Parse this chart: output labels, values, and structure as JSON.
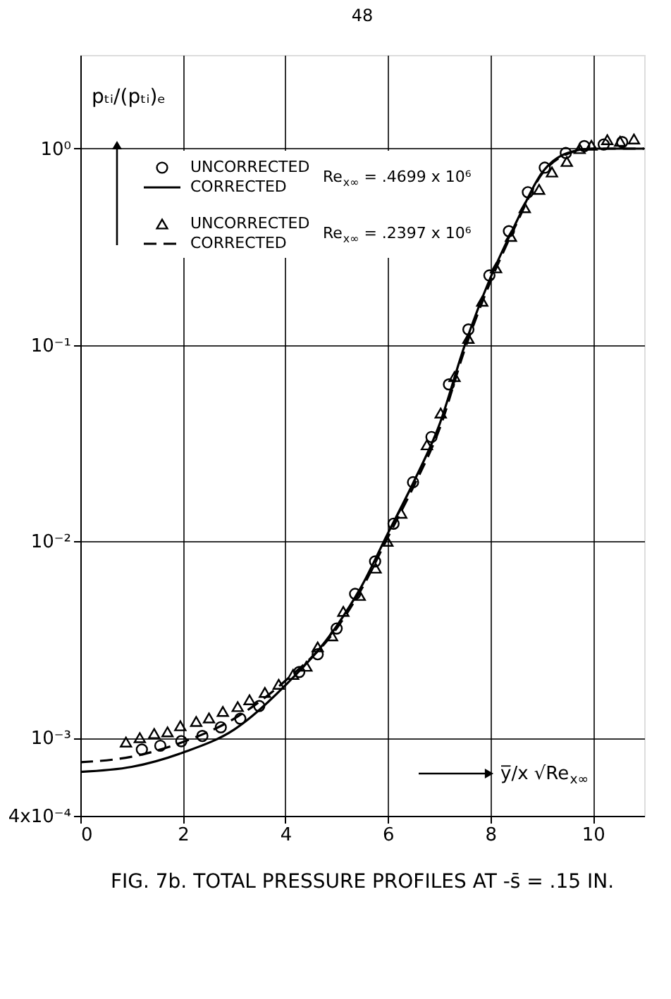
{
  "chart_data": {
    "type": "scatter",
    "title": "FIG. 7b. TOTAL PRESSURE PROFILES AT -s̄ = .15 IN.",
    "xlabel": "y̅/x √Re$_{x∞}$",
    "ylabel": "pₜᵢ/(pₜᵢ)ₑ",
    "annotations": [
      "Re$_{x∞}$ = .4699 x 10⁶",
      "Re$_{x∞}$ = .2397 x 10⁶",
      "48"
    ],
    "xlim": [
      0,
      11
    ],
    "xticks": [
      0,
      2,
      4,
      6,
      8,
      10
    ],
    "ylim": [
      0.0004,
      3
    ],
    "yticks": [
      {
        "value": 1,
        "label": "10⁰"
      },
      {
        "value": 0.1,
        "label": "10⁻¹"
      },
      {
        "value": 0.01,
        "label": "10⁻²"
      },
      {
        "value": 0.001,
        "label": "10⁻³"
      },
      {
        "value": 0.0004,
        "label": "4x10⁻⁴"
      }
    ],
    "log": "y",
    "grid": true,
    "legend": "top left",
    "series": [
      {
        "name": "UNCORRECTED",
        "marker": "circle",
        "color": "#000000",
        "x": [
          1.2,
          1.56,
          1.97,
          2.38,
          2.74,
          3.12,
          3.49,
          4.27,
          4.63,
          5.0,
          5.36,
          5.75,
          6.11,
          6.49,
          6.85,
          7.19,
          7.57,
          7.98,
          8.36,
          8.73,
          9.06,
          9.47,
          9.83,
          10.21,
          10.57
        ],
        "values": [
          0.00087,
          0.00091,
          0.00096,
          0.00102,
          0.00113,
          0.00125,
          0.00145,
          0.00216,
          0.00266,
          0.0036,
          0.0054,
          0.0079,
          0.0123,
          0.02,
          0.034,
          0.063,
          0.12,
          0.226,
          0.38,
          0.6,
          0.8,
          0.95,
          1.03,
          1.05,
          1.08
        ]
      },
      {
        "name": "CORRECTED",
        "type": "line",
        "line_style": "solid",
        "color": "#000000",
        "x": [
          0,
          1,
          2,
          3,
          4,
          5,
          5.5,
          6,
          6.5,
          7,
          7.5,
          8,
          8.5,
          9,
          9.5,
          10,
          11
        ],
        "values": [
          0.00067,
          0.00071,
          0.00084,
          0.0011,
          0.00185,
          0.0037,
          0.006,
          0.011,
          0.02,
          0.039,
          0.1,
          0.22,
          0.42,
          0.75,
          0.95,
          1.0,
          1.0
        ]
      },
      {
        "name": "UNCORRECTED",
        "marker": "triangle",
        "color": "#000000",
        "x": [
          0.89,
          1.16,
          1.44,
          1.7,
          1.95,
          2.26,
          2.51,
          2.78,
          3.07,
          3.3,
          3.6,
          3.87,
          4.15,
          4.41,
          4.63,
          4.91,
          5.13,
          5.45,
          5.76,
          5.99,
          6.26,
          6.76,
          7.03,
          7.3,
          7.57,
          7.84,
          8.11,
          8.4,
          8.67,
          8.95,
          9.2,
          9.49,
          9.74,
          9.97,
          10.28,
          10.53,
          10.8
        ],
        "values": [
          0.00095,
          0.001,
          0.00105,
          0.00107,
          0.00115,
          0.00121,
          0.00126,
          0.00136,
          0.00144,
          0.00156,
          0.0017,
          0.00187,
          0.0021,
          0.00231,
          0.0029,
          0.0033,
          0.0044,
          0.0053,
          0.0073,
          0.01,
          0.0139,
          0.031,
          0.045,
          0.069,
          0.108,
          0.167,
          0.247,
          0.357,
          0.5,
          0.62,
          0.76,
          0.86,
          1.0,
          1.04,
          1.11,
          1.09,
          1.12
        ]
      },
      {
        "name": "CORRECTED",
        "type": "line",
        "line_style": "dashed",
        "color": "#000000",
        "x": [
          0,
          1,
          2,
          3,
          4,
          5,
          5.5,
          6,
          6.5,
          7,
          7.5,
          8,
          8.5,
          9,
          9.5,
          10,
          11
        ],
        "values": [
          0.00075,
          0.0008,
          0.00095,
          0.00125,
          0.00195,
          0.0036,
          0.0058,
          0.0105,
          0.019,
          0.037,
          0.095,
          0.21,
          0.41,
          0.74,
          0.94,
          1.0,
          1.0
        ]
      }
    ]
  }
}
